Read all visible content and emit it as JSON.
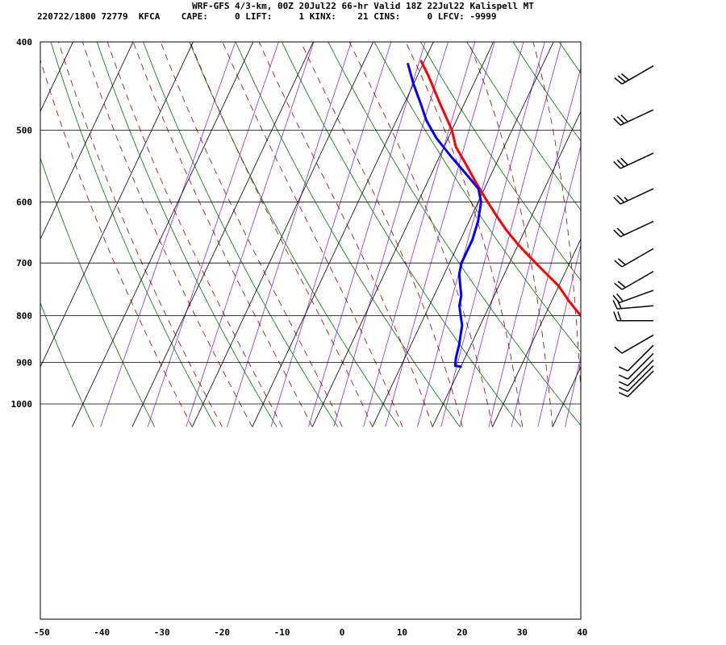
{
  "header": {
    "line1": "WRF-GFS 4/3-km, 00Z 20Jul22 66-hr Valid 18Z 22Jul22 Kalispell MT",
    "line2": "220722/1800 72779  KFCA    CAPE:     0 LIFT:     1 KINX:    21 CINS:     0 LFCV: -9999"
  },
  "chart_data": {
    "type": "line",
    "title": "WRF-GFS 4/3-km, 00Z 20Jul22 66-hr Valid 18Z 22Jul22 Kalispell MT",
    "xlabel": "",
    "ylabel": "",
    "y_log_scale": true,
    "xlim": [
      -50,
      40
    ],
    "ylim": [
      1040,
      400
    ],
    "x_ticks": [
      "-50",
      "-40",
      "-30",
      "-20",
      "-10",
      "0",
      "10",
      "20",
      "30",
      "40"
    ],
    "y_ticks": [
      "400",
      "500",
      "600",
      "700",
      "800",
      "900",
      "1000"
    ],
    "grid": true,
    "series": [
      {
        "color": "#ff0000",
        "points": [
          [
            27,
            910
          ],
          [
            25.5,
            905
          ],
          [
            24,
            890
          ],
          [
            22,
            865
          ],
          [
            20,
            843
          ],
          [
            18,
            820
          ],
          [
            16,
            800
          ],
          [
            13,
            772
          ],
          [
            10,
            742
          ],
          [
            6,
            712
          ],
          [
            3,
            690
          ],
          [
            0,
            668
          ],
          [
            -3,
            645
          ],
          [
            -6,
            620
          ],
          [
            -9,
            595
          ],
          [
            -12,
            570
          ],
          [
            -15,
            545
          ],
          [
            -18,
            522
          ],
          [
            -20,
            500
          ],
          [
            -24,
            468
          ],
          [
            -28,
            437
          ],
          [
            -30.5,
            420
          ]
        ]
      },
      {
        "color": "#0000ff",
        "points": [
          [
            0,
            910
          ],
          [
            -1,
            908
          ],
          [
            -1.5,
            890
          ],
          [
            -2,
            860
          ],
          [
            -2.5,
            840
          ],
          [
            -3,
            820
          ],
          [
            -4,
            800
          ],
          [
            -5,
            780
          ],
          [
            -5.5,
            760
          ],
          [
            -6.5,
            740
          ],
          [
            -7.5,
            720
          ],
          [
            -8,
            700
          ],
          [
            -8,
            680
          ],
          [
            -8,
            660
          ],
          [
            -8.5,
            630
          ],
          [
            -9.5,
            600
          ],
          [
            -11,
            580
          ],
          [
            -14,
            560
          ],
          [
            -18,
            535
          ],
          [
            -22,
            510
          ],
          [
            -25,
            488
          ],
          [
            -27,
            470
          ],
          [
            -30,
            445
          ],
          [
            -32.5,
            423
          ]
        ]
      }
    ],
    "wind_barbs": [
      {
        "pressure": 425,
        "direction_deg": 240,
        "speed_kt": 30
      },
      {
        "pressure": 475,
        "direction_deg": 245,
        "speed_kt": 30
      },
      {
        "pressure": 530,
        "direction_deg": 245,
        "speed_kt": 30
      },
      {
        "pressure": 580,
        "direction_deg": 245,
        "speed_kt": 25
      },
      {
        "pressure": 630,
        "direction_deg": 245,
        "speed_kt": 20
      },
      {
        "pressure": 675,
        "direction_deg": 240,
        "speed_kt": 20
      },
      {
        "pressure": 715,
        "direction_deg": 240,
        "speed_kt": 20
      },
      {
        "pressure": 750,
        "direction_deg": 250,
        "speed_kt": 20
      },
      {
        "pressure": 780,
        "direction_deg": 265,
        "speed_kt": 20
      },
      {
        "pressure": 810,
        "direction_deg": 270,
        "speed_kt": 20
      },
      {
        "pressure": 840,
        "direction_deg": 240,
        "speed_kt": 10
      },
      {
        "pressure": 862,
        "direction_deg": 225,
        "speed_kt": 10
      },
      {
        "pressure": 880,
        "direction_deg": 225,
        "speed_kt": 10
      },
      {
        "pressure": 895,
        "direction_deg": 225,
        "speed_kt": 10
      },
      {
        "pressure": 908,
        "direction_deg": 225,
        "speed_kt": 10
      },
      {
        "pressure": 920,
        "direction_deg": 225,
        "speed_kt": 10
      }
    ],
    "colors": {
      "isotherm_grid": "#000000",
      "dry_adiabat": "#007000",
      "moist_adiabat": "#990000",
      "mixing_ratio": "#8a2be2"
    }
  }
}
